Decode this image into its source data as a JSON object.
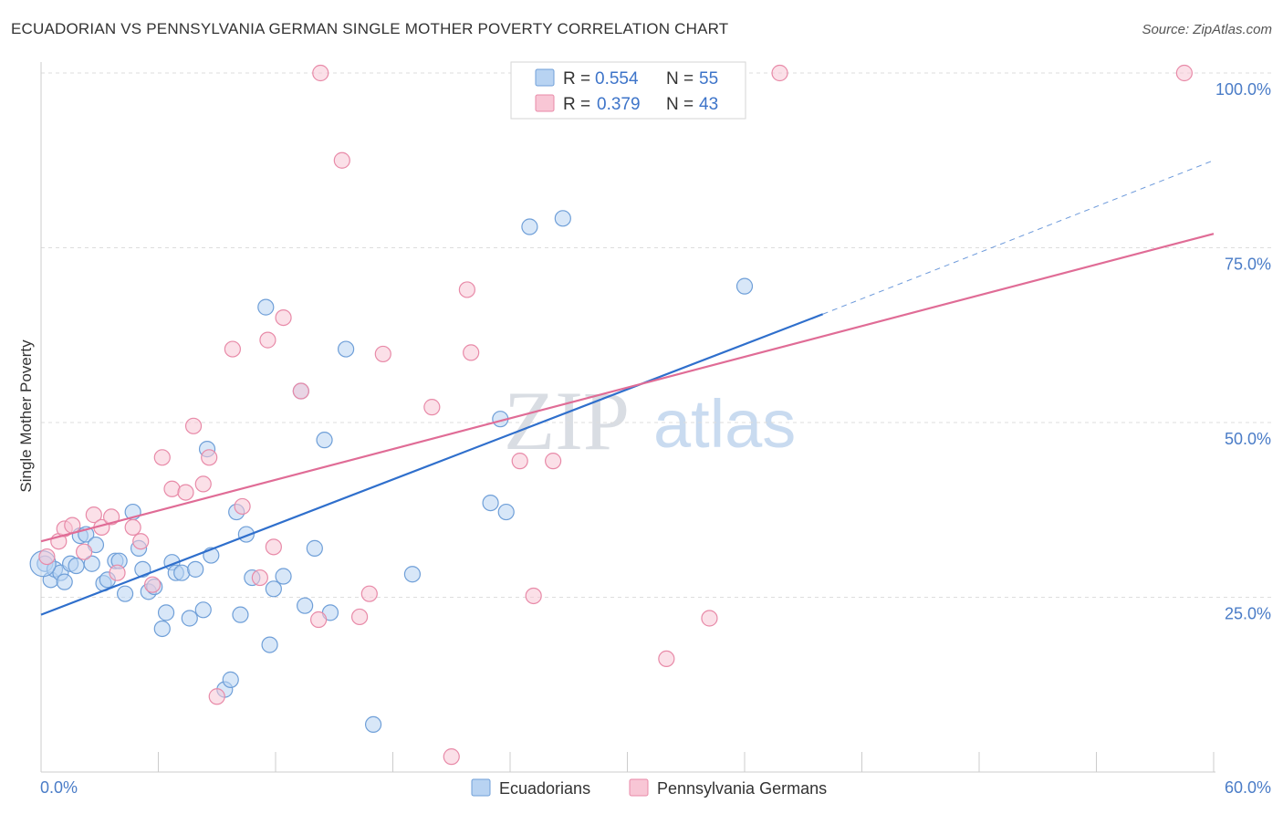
{
  "title": "ECUADORIAN VS PENNSYLVANIA GERMAN SINGLE MOTHER POVERTY CORRELATION CHART",
  "source": "Source: ZipAtlas.com",
  "watermark": {
    "zip": "ZIP",
    "atlas": "atlas"
  },
  "legend": {
    "r_label": "R =",
    "n_label": "N =",
    "series": [
      {
        "r": "0.554",
        "n": "55"
      },
      {
        "r": "0.379",
        "n": "43"
      }
    ]
  },
  "bottom_legend": [
    "Ecuadorians",
    "Pennsylvania Germans"
  ],
  "colors": {
    "blue_fill": "#b8d3f2",
    "blue_stroke": "#6f9fd8",
    "blue_line": "#2f6fcc",
    "pink_fill": "#f8c6d5",
    "pink_stroke": "#e88aa8",
    "pink_line": "#e06c96",
    "grid": "#dddddd",
    "tick_label": "#4a7cc7"
  },
  "chart_data": {
    "type": "scatter",
    "title": "ECUADORIAN VS PENNSYLVANIA GERMAN SINGLE MOTHER POVERTY CORRELATION CHART",
    "xlabel": "",
    "ylabel": "Single Mother Poverty",
    "xlim": [
      0,
      60
    ],
    "ylim": [
      0,
      100
    ],
    "x_tick_labels": [
      "0.0%",
      "60.0%"
    ],
    "y_ticks": [
      25,
      50,
      75,
      100
    ],
    "y_tick_labels": [
      "25.0%",
      "50.0%",
      "75.0%",
      "100.0%"
    ],
    "grid": "horizontal dashed",
    "legend_position": "top-center",
    "series": [
      {
        "name": "Ecuadorians",
        "r": 0.554,
        "n": 55,
        "trend": {
          "x0": 0,
          "y0": 22.5,
          "x1": 40,
          "y1": 65.5,
          "x_dashed_end": 60,
          "y_dashed_end": 87.5
        },
        "points": [
          [
            0.2,
            29.8
          ],
          [
            0.5,
            27.5
          ],
          [
            0.7,
            29.0
          ],
          [
            1.0,
            28.5
          ],
          [
            1.2,
            27.2
          ],
          [
            1.5,
            29.8
          ],
          [
            1.8,
            29.5
          ],
          [
            2.0,
            33.8
          ],
          [
            2.3,
            34.0
          ],
          [
            2.6,
            29.8
          ],
          [
            2.8,
            32.5
          ],
          [
            3.2,
            27.0
          ],
          [
            3.4,
            27.5
          ],
          [
            3.8,
            30.2
          ],
          [
            4.0,
            30.2
          ],
          [
            4.3,
            25.5
          ],
          [
            4.7,
            37.2
          ],
          [
            5.0,
            32.0
          ],
          [
            5.2,
            29.0
          ],
          [
            5.5,
            25.8
          ],
          [
            5.8,
            26.5
          ],
          [
            6.2,
            20.5
          ],
          [
            6.4,
            22.8
          ],
          [
            6.7,
            30.0
          ],
          [
            6.9,
            28.5
          ],
          [
            7.2,
            28.5
          ],
          [
            7.6,
            22.0
          ],
          [
            7.9,
            29.0
          ],
          [
            8.3,
            23.2
          ],
          [
            8.5,
            46.2
          ],
          [
            8.7,
            31.0
          ],
          [
            9.4,
            11.8
          ],
          [
            9.7,
            13.2
          ],
          [
            10.0,
            37.2
          ],
          [
            10.2,
            22.5
          ],
          [
            10.5,
            34.0
          ],
          [
            10.8,
            27.8
          ],
          [
            11.5,
            66.5
          ],
          [
            11.7,
            18.2
          ],
          [
            11.9,
            26.2
          ],
          [
            12.4,
            28.0
          ],
          [
            13.3,
            54.5
          ],
          [
            13.5,
            23.8
          ],
          [
            14.0,
            32.0
          ],
          [
            14.5,
            47.5
          ],
          [
            14.8,
            22.8
          ],
          [
            15.6,
            60.5
          ],
          [
            17.0,
            6.8
          ],
          [
            19.0,
            28.3
          ],
          [
            23.0,
            38.5
          ],
          [
            23.5,
            50.5
          ],
          [
            23.8,
            37.2
          ],
          [
            25.0,
            78.0
          ],
          [
            26.7,
            79.2
          ],
          [
            36.0,
            69.5
          ]
        ]
      },
      {
        "name": "Pennsylvania Germans",
        "r": 0.379,
        "n": 43,
        "trend": {
          "x0": 0,
          "y0": 33.0,
          "x1": 60,
          "y1": 77.0
        },
        "points": [
          [
            0.3,
            30.8
          ],
          [
            0.9,
            33.0
          ],
          [
            1.2,
            34.8
          ],
          [
            1.6,
            35.3
          ],
          [
            2.2,
            31.5
          ],
          [
            2.7,
            36.8
          ],
          [
            3.1,
            35.0
          ],
          [
            3.6,
            36.5
          ],
          [
            3.9,
            28.5
          ],
          [
            4.7,
            35.0
          ],
          [
            5.1,
            33.0
          ],
          [
            5.7,
            26.8
          ],
          [
            6.2,
            45.0
          ],
          [
            6.7,
            40.5
          ],
          [
            7.4,
            40.0
          ],
          [
            7.8,
            49.5
          ],
          [
            8.3,
            41.2
          ],
          [
            8.6,
            45.0
          ],
          [
            9.0,
            10.8
          ],
          [
            9.8,
            60.5
          ],
          [
            10.3,
            38.0
          ],
          [
            11.2,
            27.8
          ],
          [
            11.6,
            61.8
          ],
          [
            11.9,
            32.2
          ],
          [
            12.4,
            65.0
          ],
          [
            13.3,
            54.5
          ],
          [
            14.2,
            21.8
          ],
          [
            14.3,
            100.0
          ],
          [
            15.4,
            87.5
          ],
          [
            16.3,
            22.2
          ],
          [
            16.8,
            25.5
          ],
          [
            17.5,
            59.8
          ],
          [
            20.0,
            52.2
          ],
          [
            21.0,
            2.2
          ],
          [
            21.8,
            69.0
          ],
          [
            22.0,
            60.0
          ],
          [
            24.5,
            44.5
          ],
          [
            25.2,
            25.2
          ],
          [
            26.2,
            44.5
          ],
          [
            32.0,
            16.2
          ],
          [
            34.2,
            22.0
          ],
          [
            37.8,
            100.0
          ],
          [
            58.5,
            100.0
          ]
        ]
      }
    ]
  }
}
